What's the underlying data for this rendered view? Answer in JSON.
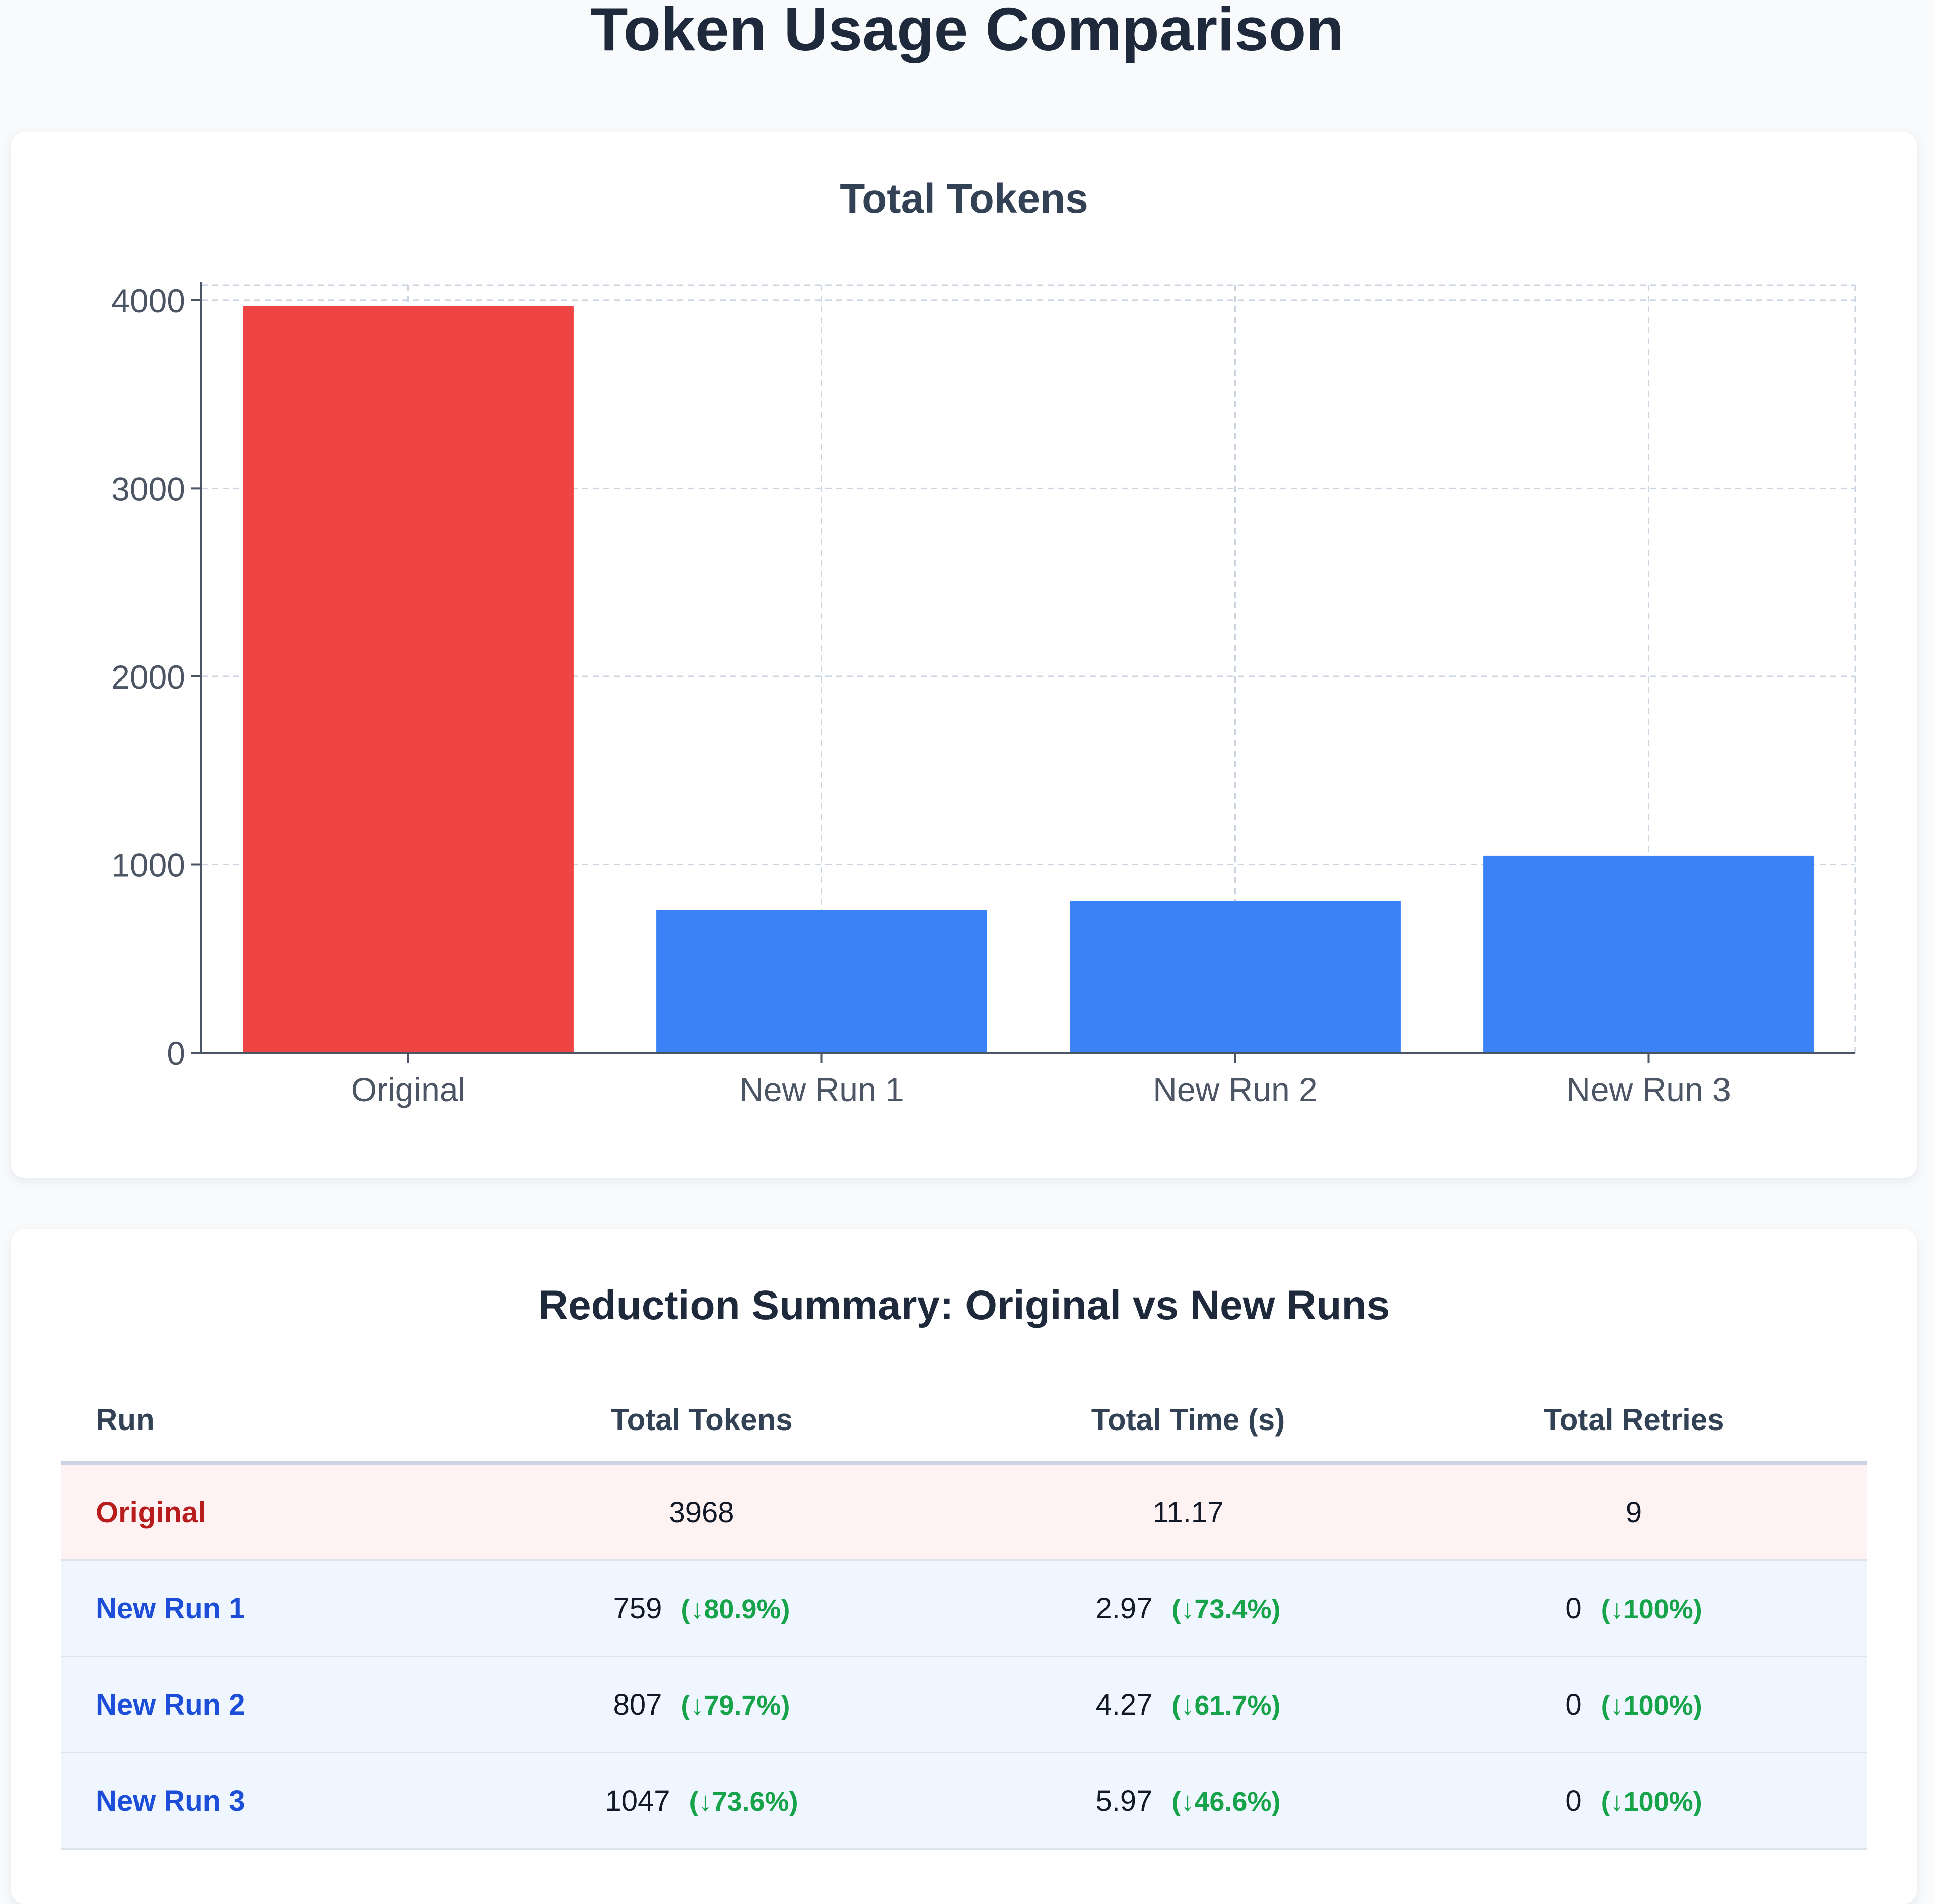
{
  "page": {
    "title": "Token Usage Comparison"
  },
  "colors": {
    "original_bar": "#ef4444",
    "new_bar": "#3b82f6",
    "grid": "#cbd5e1",
    "axis": "#4b5563",
    "reduction_text": "#16a34a"
  },
  "chart_data": {
    "type": "bar",
    "title": "Total Tokens",
    "xlabel": "",
    "ylabel": "",
    "categories": [
      "Original",
      "New Run 1",
      "New Run 2",
      "New Run 3"
    ],
    "values": [
      3968,
      759,
      807,
      1047
    ],
    "bar_colors": [
      "#ef4444",
      "#3b82f6",
      "#3b82f6",
      "#3b82f6"
    ],
    "y_ticks": [
      0,
      1000,
      2000,
      3000,
      4000
    ],
    "ylim": [
      0,
      4080
    ],
    "grid": true,
    "legend": "none"
  },
  "summary": {
    "title": "Reduction Summary: Original vs New Runs",
    "headers": {
      "run": "Run",
      "tokens": "Total Tokens",
      "time": "Total Time (s)",
      "retries": "Total Retries"
    },
    "rows": [
      {
        "run": "Original",
        "tokens": "3968",
        "tokens_delta": "",
        "time": "11.17",
        "time_delta": "",
        "retries": "9",
        "retries_delta": ""
      },
      {
        "run": "New Run 1",
        "tokens": "759",
        "tokens_delta": "(↓80.9%)",
        "time": "2.97",
        "time_delta": "(↓73.4%)",
        "retries": "0",
        "retries_delta": "(↓100%)"
      },
      {
        "run": "New Run 2",
        "tokens": "807",
        "tokens_delta": "(↓79.7%)",
        "time": "4.27",
        "time_delta": "(↓61.7%)",
        "retries": "0",
        "retries_delta": "(↓100%)"
      },
      {
        "run": "New Run 3",
        "tokens": "1047",
        "tokens_delta": "(↓73.6%)",
        "time": "5.97",
        "time_delta": "(↓46.6%)",
        "retries": "0",
        "retries_delta": "(↓100%)"
      }
    ]
  }
}
